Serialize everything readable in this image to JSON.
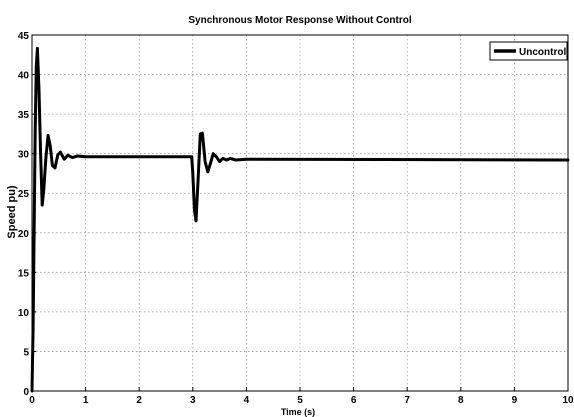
{
  "chart_data": {
    "type": "line",
    "title": "Synchronous Motor Response Without Control",
    "xlabel": "Time (s)",
    "ylabel": "Speed pu)",
    "xlim": [
      0,
      10
    ],
    "ylim": [
      0,
      45
    ],
    "xticks": [
      "0",
      "1",
      "2",
      "3",
      "4",
      "5",
      "6",
      "7",
      "8",
      "9",
      "10"
    ],
    "yticks": [
      "0",
      "5",
      "10",
      "15",
      "20",
      "25",
      "30",
      "35",
      "40",
      "45"
    ],
    "grid": true,
    "legend": "top-right",
    "series": [
      {
        "name": "Uncontrol",
        "color": "#000000",
        "x": [
          0,
          0.02,
          0.04,
          0.06,
          0.08,
          0.1,
          0.13,
          0.16,
          0.19,
          0.22,
          0.26,
          0.3,
          0.34,
          0.38,
          0.43,
          0.48,
          0.53,
          0.6,
          0.67,
          0.75,
          0.85,
          1.0,
          2.98,
          3.0,
          3.03,
          3.06,
          3.1,
          3.14,
          3.18,
          3.23,
          3.28,
          3.33,
          3.38,
          3.44,
          3.5,
          3.56,
          3.63,
          3.7,
          3.8,
          4.0,
          10.0
        ],
        "y": [
          0,
          8,
          20,
          33,
          41,
          43.3,
          38,
          30,
          23.5,
          25.5,
          29.5,
          32.3,
          31,
          28.5,
          28.2,
          29.8,
          30.2,
          29.3,
          29.8,
          29.5,
          29.7,
          29.6,
          29.6,
          27.5,
          23,
          21.5,
          27,
          32.5,
          32.6,
          29,
          27.7,
          28.8,
          30,
          29.6,
          29,
          29.4,
          29.2,
          29.4,
          29.2,
          29.3,
          29.2
        ]
      }
    ]
  }
}
